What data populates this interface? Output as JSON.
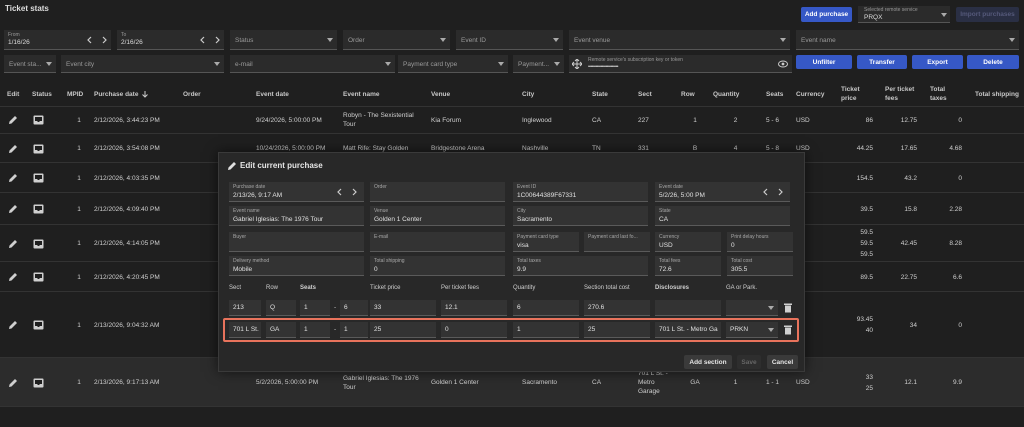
{
  "header": {
    "title": "Ticket stats",
    "add_purchase": "Add purchase",
    "remote_service_label": "Selected remote service",
    "remote_service": "PRQX",
    "import": "Import purchases"
  },
  "filters": {
    "from_label": "From",
    "from": "1/16/26",
    "to_label": "To",
    "to": "2/16/26",
    "status": "Status",
    "order": "Order",
    "event_id": "Event ID",
    "event_venue": "Event venue",
    "event_name": "Event name",
    "event_state": "Event sta...",
    "event_city": "Event city",
    "email": "e-mail",
    "payment_card_type": "Payment card type",
    "payment": "Payment...",
    "token_label": "Remote service's subscription key or token",
    "token": "••••••••••••••••••••••••",
    "buttons": [
      "Unfilter",
      "Transfer",
      "Export",
      "Delete"
    ]
  },
  "table": {
    "columns": [
      "Edit",
      "Status",
      "MPID",
      "Purchase date",
      "Order",
      "Event date",
      "Event name",
      "Venue",
      "City",
      "State",
      "Sect",
      "Row",
      "Quantity",
      "Seats",
      "Currency",
      "Ticket price",
      "Per ticket fees",
      "Total taxes",
      "Total shipping"
    ],
    "rows": [
      {
        "mpid": "1",
        "purchase_date": "2/12/2026, 3:44:23 PM",
        "event_date": "9/24/2026, 5:00:00 PM",
        "event_name": "Robyn - The Sexistential Tour",
        "venue": "Kia Forum",
        "city": "Inglewood",
        "state": "CA",
        "sect": "227",
        "row": "1",
        "quantity": "2",
        "seats": "5 - 6",
        "currency": "USD",
        "ticket_price": [
          "86"
        ],
        "per_ticket_fees": "12.75",
        "total_taxes": "0"
      },
      {
        "mpid": "1",
        "purchase_date": "2/12/2026, 3:54:08 PM",
        "event_date": "10/24/2026, 5:00:00 PM",
        "event_name": "Matt Rife: Stay Golden",
        "venue": "Bridgestone Arena",
        "city": "Nashville",
        "state": "TN",
        "sect": "331",
        "row": "B",
        "quantity": "4",
        "seats": "5 - 8",
        "currency": "USD",
        "ticket_price": [
          "44.25"
        ],
        "per_ticket_fees": "17.65",
        "total_taxes": "4.68"
      },
      {
        "mpid": "1",
        "purchase_date": "2/12/2026, 4:03:35 PM",
        "ticket_price": [
          "154.5"
        ],
        "per_ticket_fees": "43.2",
        "total_taxes": "0"
      },
      {
        "mpid": "1",
        "purchase_date": "2/12/2026, 4:09:40 PM",
        "ticket_price": [
          "39.5"
        ],
        "per_ticket_fees": "15.8",
        "total_taxes": "2.28"
      },
      {
        "mpid": "1",
        "purchase_date": "2/12/2026, 4:14:05 PM",
        "ticket_price": [
          "59.5",
          "59.5",
          "59.5"
        ],
        "per_ticket_fees": "42.45",
        "total_taxes": "8.28"
      },
      {
        "mpid": "1",
        "purchase_date": "2/12/2026, 4:20:45 PM",
        "ticket_price": [
          "89.5"
        ],
        "per_ticket_fees": "22.75",
        "total_taxes": "6.6"
      },
      {
        "mpid": "1",
        "purchase_date": "2/13/2026, 9:04:32 AM",
        "ticket_price": [
          "93.45",
          "40"
        ],
        "per_ticket_fees": "34",
        "total_taxes": "0"
      },
      {
        "mpid": "1",
        "purchase_date": "2/13/2026, 9:17:13 AM",
        "event_date": "5/2/2026, 5:00:00 PM",
        "event_name": "Gabriel Iglesias: The 1976 Tour",
        "venue": "Golden 1 Center",
        "city": "Sacramento",
        "state": "CA",
        "sect": "701 L St. - Metro Garage",
        "row": "GA",
        "quantity": "1",
        "seats": "1 - 1",
        "currency": "USD",
        "ticket_price": [
          "33",
          "25"
        ],
        "per_ticket_fees": "12.1",
        "total_taxes": "9.9"
      }
    ]
  },
  "modal": {
    "title": "Edit current purchase",
    "fields": [
      [
        {
          "label": "Purchase date",
          "value": "2/13/26, 9:17 AM"
        },
        {
          "label": "Order"
        },
        {
          "label": "Event ID",
          "value": "1C00644389F67331"
        },
        {
          "label": "Event date",
          "value": "5/2/26, 5:00 PM"
        }
      ],
      [
        {
          "label": "Event name",
          "value": "Gabriel Iglesias: The 1976 Tour"
        },
        {
          "label": "Venue",
          "value": "Golden 1 Center"
        },
        {
          "label": "City",
          "value": "Sacramento"
        },
        {
          "label": "State",
          "value": "CA"
        }
      ],
      [
        {
          "label": "Buyer"
        },
        {
          "label": "E-mail"
        },
        {
          "label": "Payment card type",
          "value": "visa"
        },
        {
          "label": "Payment card last fo..."
        },
        {
          "label": "Currency",
          "value": "USD"
        },
        {
          "label": "Print delay hours",
          "value": "0"
        }
      ],
      [
        {
          "label": "Delivery method",
          "value": "Mobile"
        },
        {
          "label": "Total shipping",
          "value": "0"
        },
        {
          "label": "Total taxes",
          "value": "9.9"
        },
        {
          "label": "Total fees",
          "value": "72.6"
        },
        {
          "label": "Total cost",
          "value": "305.5"
        }
      ]
    ],
    "section_columns": [
      "Sect",
      "Row",
      "Seats",
      "Ticket price",
      "Per ticket fees",
      "Quantity",
      "Section total cost",
      "Disclosures",
      "GA or Park."
    ],
    "seat_separator": "-",
    "sections": [
      {
        "sect": "213",
        "row": "Q",
        "seat_from": "1",
        "seat_to": "6",
        "ticket_price": "33",
        "per_ticket_fees": "12.1",
        "quantity": "6",
        "section_total_cost": "270.6"
      },
      {
        "sect": "701 L St.",
        "row": "GA",
        "seat_from": "1",
        "seat_to": "1",
        "ticket_price": "25",
        "per_ticket_fees": "0",
        "quantity": "1",
        "section_total_cost": "25",
        "disclosures": "701 L St. - Metro Ga",
        "ga_or_park": "PRKN"
      }
    ],
    "buttons": {
      "add_section": "Add section",
      "save": "Save",
      "cancel": "Cancel"
    }
  }
}
